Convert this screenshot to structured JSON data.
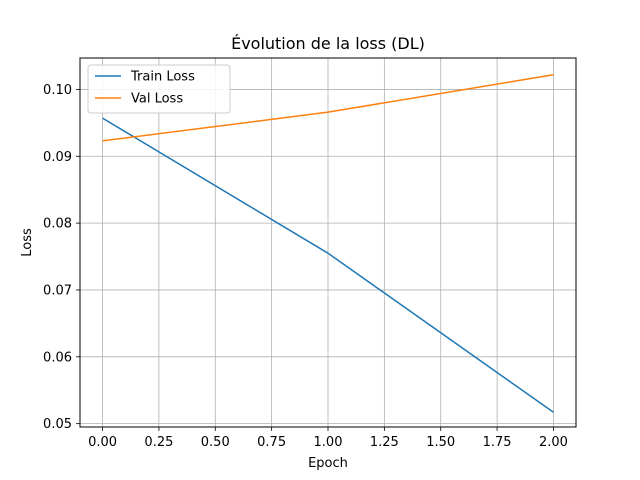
{
  "chart_data": {
    "type": "line",
    "title": "Évolution de la loss (DL)",
    "xlabel": "Epoch",
    "ylabel": "Loss",
    "x": [
      0,
      1,
      2
    ],
    "xlim": [
      -0.1,
      2.1
    ],
    "ylim": [
      0.0495,
      0.1047
    ],
    "xticks": [
      0.0,
      0.25,
      0.5,
      0.75,
      1.0,
      1.25,
      1.5,
      1.75,
      2.0
    ],
    "xtick_labels": [
      "0.00",
      "0.25",
      "0.50",
      "0.75",
      "1.00",
      "1.25",
      "1.50",
      "1.75",
      "2.00"
    ],
    "yticks": [
      0.05,
      0.06,
      0.07,
      0.08,
      0.09,
      0.1
    ],
    "ytick_labels": [
      "0.05",
      "0.06",
      "0.07",
      "0.08",
      "0.09",
      "0.10"
    ],
    "grid": true,
    "legend_position": "top-left",
    "series": [
      {
        "name": "Train Loss",
        "color": "#1f77b4",
        "values": [
          0.0957,
          0.0755,
          0.0517
        ]
      },
      {
        "name": "Val Loss",
        "color": "#ff7f0e",
        "values": [
          0.0923,
          0.0966,
          0.1022
        ]
      }
    ]
  }
}
